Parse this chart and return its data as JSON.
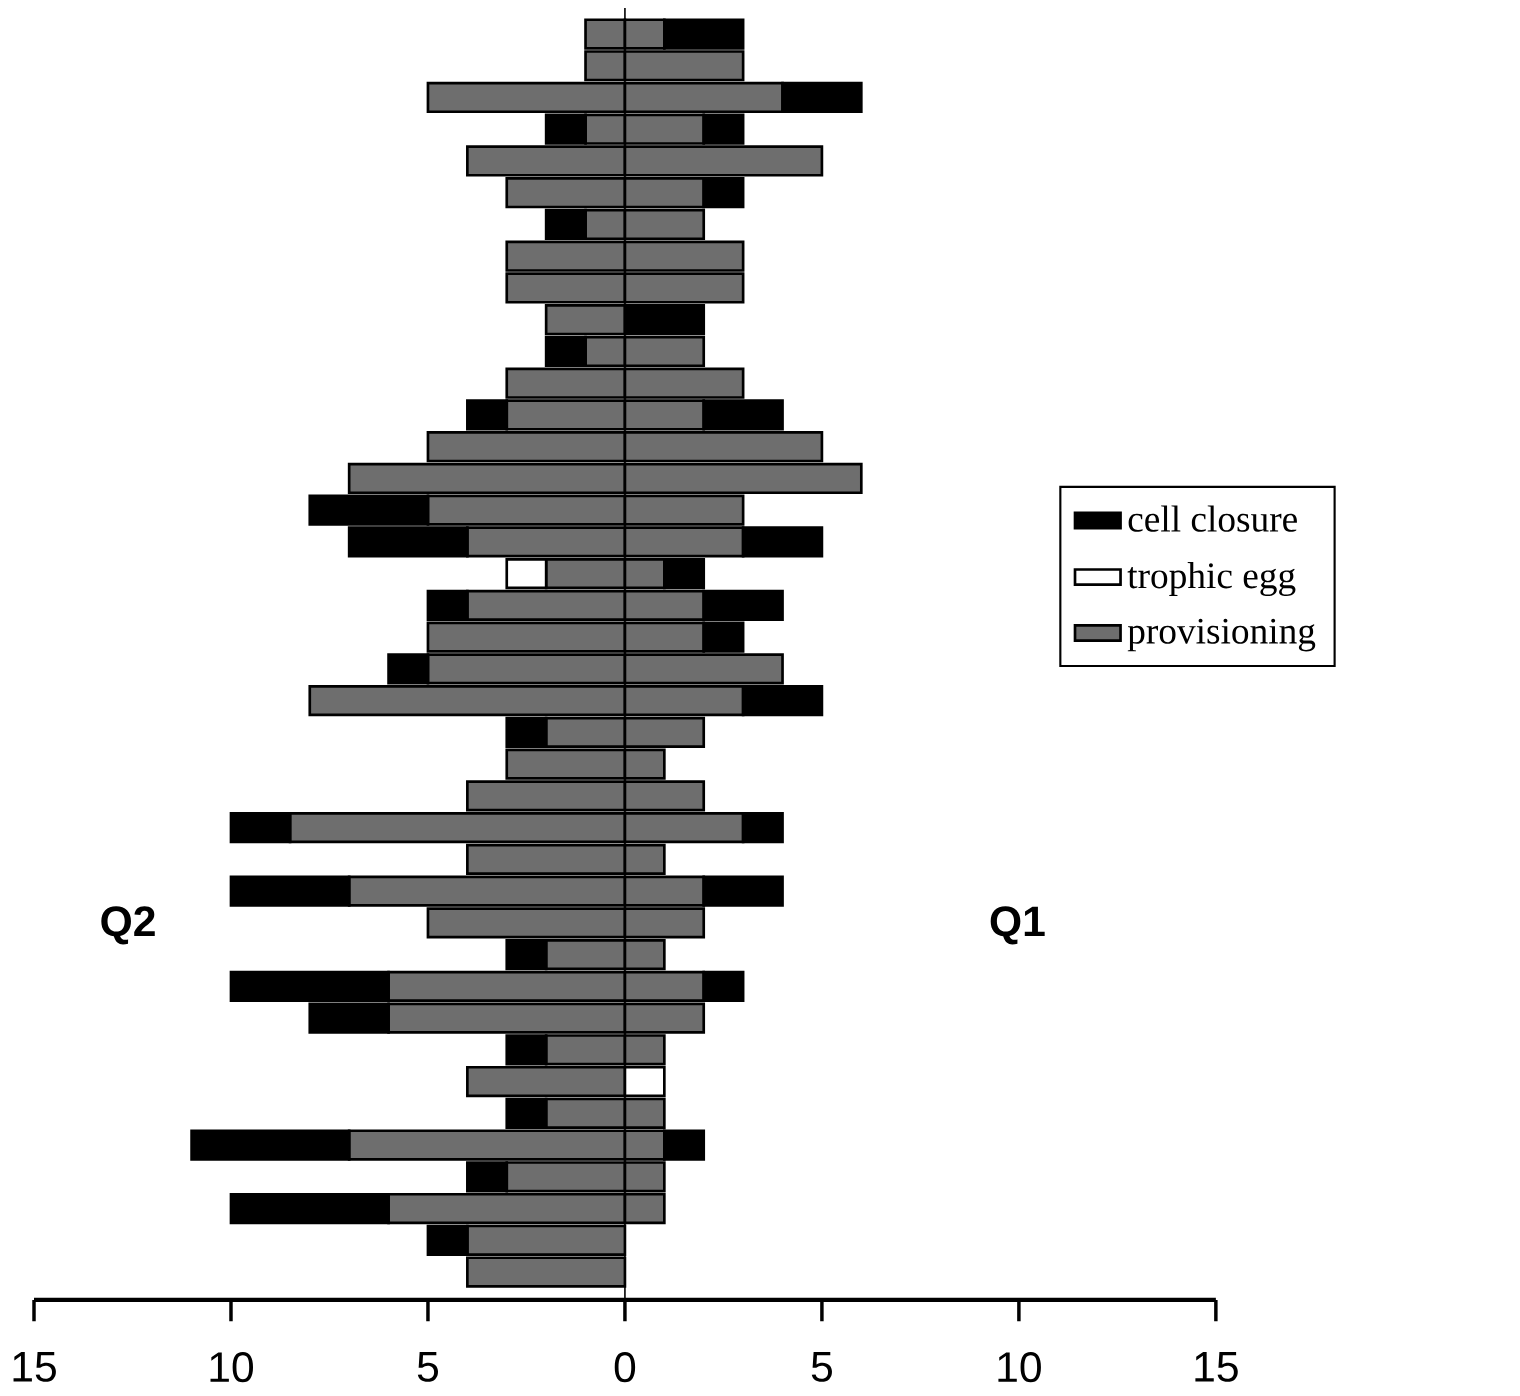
{
  "chart_data": [
    {
      "type": "bar",
      "orientation": "horizontal",
      "stacked": true,
      "categories": [
        null,
        null,
        null,
        null,
        null,
        null,
        null,
        null,
        null,
        null,
        null,
        null,
        null,
        null,
        null,
        null,
        null,
        null,
        null,
        null,
        null,
        null,
        null,
        null,
        null,
        null,
        null,
        null,
        null,
        null,
        null,
        null,
        null,
        null,
        null,
        null,
        null,
        null,
        null,
        null
      ],
      "series": [
        {
          "color": "#6e6e6e",
          "values": [
            1,
            1,
            5,
            1,
            4,
            3,
            1,
            3,
            3,
            2,
            1,
            3,
            3,
            5,
            7,
            5,
            4,
            2,
            4,
            5,
            5,
            8,
            2,
            3,
            4,
            8.5,
            4,
            7,
            5,
            2,
            6,
            6,
            2,
            4,
            2,
            7,
            3,
            6,
            4,
            4
          ]
        },
        {
          "color": "#ffffff",
          "values": [
            0,
            0,
            0,
            0,
            0,
            0,
            0,
            0,
            0,
            0,
            0,
            0,
            0,
            0,
            0,
            0,
            0,
            1,
            0,
            0,
            0,
            0,
            0,
            0,
            0,
            0,
            0,
            0,
            0,
            0,
            0,
            0,
            0,
            0,
            0,
            0,
            0,
            0,
            0,
            0
          ]
        },
        {
          "color": "#000000",
          "values": [
            0,
            0,
            0,
            1,
            0,
            0,
            1,
            0,
            0,
            0,
            1,
            0,
            1,
            0,
            0,
            3,
            3,
            0,
            1,
            0,
            1,
            0,
            1,
            0,
            0,
            1.5,
            0,
            3,
            0,
            1,
            4,
            2,
            1,
            0,
            1,
            4,
            1,
            4,
            1,
            0
          ]
        }
      ],
      "xlim": [
        15,
        0
      ],
      "xticks": [
        15,
        10,
        5,
        0
      ],
      "ref_lines": [
        {
          "axis": "x",
          "value": 0
        }
      ],
      "tick_labels": "x",
      "annotations": [
        "Q2"
      ]
    },
    {
      "type": "bar",
      "orientation": "horizontal",
      "stacked": true,
      "categories": [
        null,
        null,
        null,
        null,
        null,
        null,
        null,
        null,
        null,
        null,
        null,
        null,
        null,
        null,
        null,
        null,
        null,
        null,
        null,
        null,
        null,
        null,
        null,
        null,
        null,
        null,
        null,
        null,
        null,
        null,
        null,
        null,
        null,
        null,
        null,
        null,
        null,
        null,
        null,
        null
      ],
      "series": [
        {
          "name": "provisioning",
          "color": "#6e6e6e",
          "values": [
            1,
            3,
            4,
            2,
            5,
            2,
            2,
            3,
            3,
            0,
            2,
            3,
            2,
            5,
            6,
            3,
            3,
            1,
            2,
            2,
            4,
            3,
            2,
            1,
            2,
            3,
            1,
            2,
            2,
            1,
            2,
            2,
            1,
            0,
            1,
            1,
            1,
            1,
            0,
            0
          ]
        },
        {
          "name": "trophic egg",
          "color": "#ffffff",
          "values": [
            0,
            0,
            0,
            0,
            0,
            0,
            0,
            0,
            0,
            0,
            0,
            0,
            0,
            0,
            0,
            0,
            0,
            0,
            0,
            0,
            0,
            0,
            0,
            0,
            0,
            0,
            0,
            0,
            0,
            0,
            0,
            0,
            0,
            1,
            0,
            0,
            0,
            0,
            0,
            0
          ]
        },
        {
          "name": "cell closure",
          "color": "#000000",
          "values": [
            2,
            0,
            2,
            1,
            0,
            1,
            0,
            0,
            0,
            2,
            0,
            0,
            2,
            0,
            0,
            0,
            2,
            1,
            2,
            1,
            0,
            2,
            0,
            0,
            0,
            1,
            0,
            2,
            0,
            0,
            1,
            0,
            0,
            0,
            0,
            1,
            0,
            0,
            0,
            0
          ]
        }
      ],
      "xlim": [
        0,
        15
      ],
      "xticks": [
        5,
        10,
        15
      ],
      "tick_labels": "x",
      "legend": "right",
      "annotations": [
        "Q1"
      ]
    }
  ]
}
